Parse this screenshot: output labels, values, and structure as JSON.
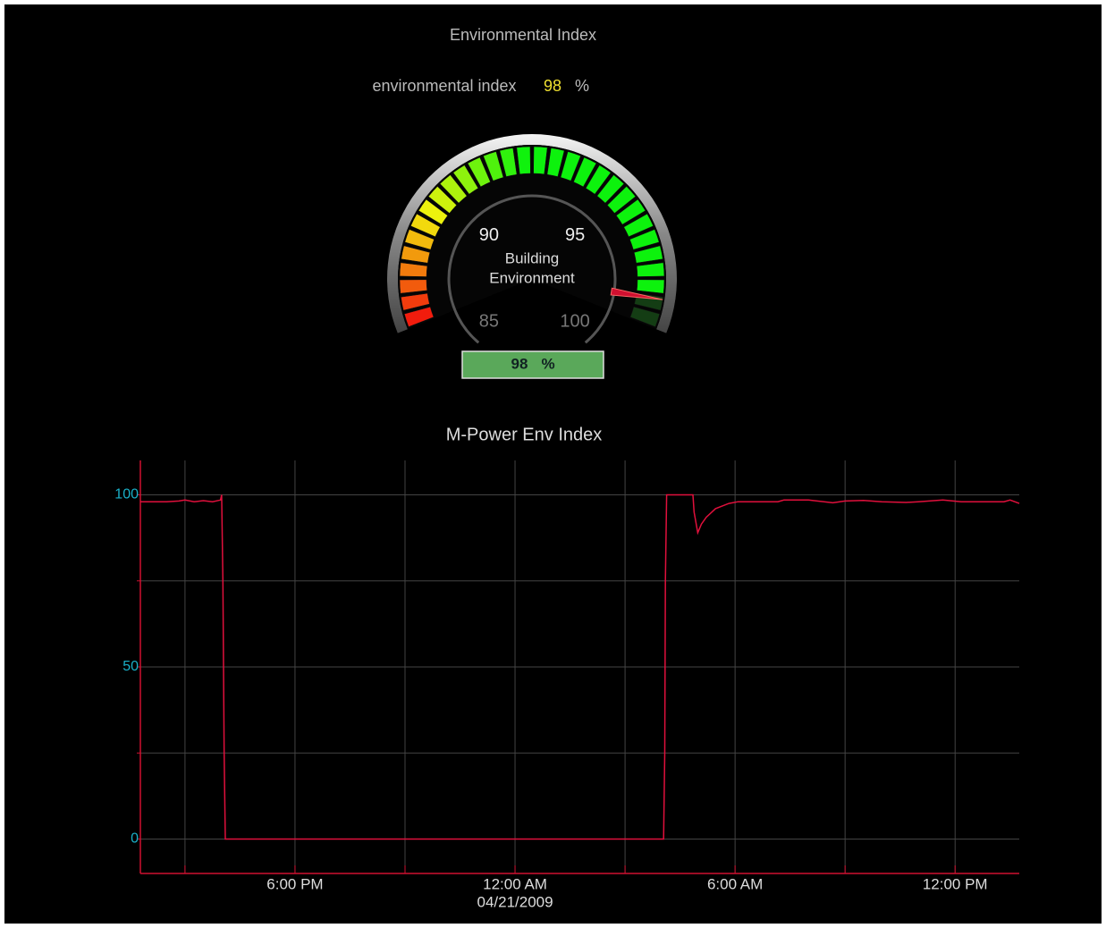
{
  "header": {
    "title": "Environmental Index",
    "reading_label": "environmental index",
    "unit": "%"
  },
  "gauge": {
    "value": 98,
    "unit": "%",
    "lim": [
      85,
      100
    ],
    "ticks": [
      85,
      90,
      95,
      100
    ],
    "label": [
      "Building",
      "Environment"
    ]
  },
  "chart_data": {
    "type": "line",
    "title": "M-Power Env Index",
    "color": "#e0103c",
    "x": [
      "2009-04-20T13:47",
      "2009-04-20T14:30",
      "2009-04-20T14:50",
      "2009-04-20T15:00",
      "2009-04-20T15:15",
      "2009-04-20T15:30",
      "2009-04-20T15:45",
      "2009-04-20T15:58",
      "2009-04-20T16:00",
      "2009-04-20T16:02",
      "2009-04-20T16:04",
      "2009-04-20T16:06",
      "2009-04-21T04:03",
      "2009-04-21T04:05",
      "2009-04-21T04:06",
      "2009-04-21T04:08",
      "2009-04-21T04:51",
      "2009-04-21T04:53",
      "2009-04-21T04:59",
      "2009-04-21T05:05",
      "2009-04-21T05:13",
      "2009-04-21T05:28",
      "2009-04-21T05:50",
      "2009-04-21T06:05",
      "2009-04-21T07:10",
      "2009-04-21T07:20",
      "2009-04-21T08:00",
      "2009-04-21T08:40",
      "2009-04-21T09:00",
      "2009-04-21T09:30",
      "2009-04-21T10:00",
      "2009-04-21T10:40",
      "2009-04-21T11:00",
      "2009-04-21T11:40",
      "2009-04-21T12:10",
      "2009-04-21T12:40",
      "2009-04-21T13:20",
      "2009-04-21T13:30",
      "2009-04-21T13:45"
    ],
    "values": [
      98,
      98,
      98.2,
      98.5,
      98,
      98.3,
      98,
      98.5,
      100,
      75,
      25,
      0,
      0,
      25,
      75,
      100,
      100,
      95,
      89,
      91.5,
      93.5,
      96,
      97.5,
      98,
      98,
      98.5,
      98.5,
      97.7,
      98.2,
      98.4,
      98,
      97.8,
      98,
      98.5,
      98,
      98,
      98,
      98.5,
      97.5
    ],
    "xlim": [
      "2009-04-20T13:47",
      "2009-04-21T13:45"
    ],
    "xticks": [
      {
        "value": "2009-04-20T18:00",
        "label": "6:00 PM"
      },
      {
        "value": "2009-04-21T00:00",
        "label": "12:00 AM",
        "date_label": "04/21/2009"
      },
      {
        "value": "2009-04-21T06:00",
        "label": "6:00 AM"
      },
      {
        "value": "2009-04-21T12:00",
        "label": "12:00 PM"
      }
    ],
    "xminor_ticks": [
      "2009-04-20T15:00",
      "2009-04-20T21:00",
      "2009-04-21T03:00",
      "2009-04-21T09:00"
    ],
    "ylim": [
      -10,
      110
    ],
    "yticks": [
      0,
      50,
      100
    ],
    "yminor_ticks": [
      25,
      75
    ],
    "grid": true
  }
}
